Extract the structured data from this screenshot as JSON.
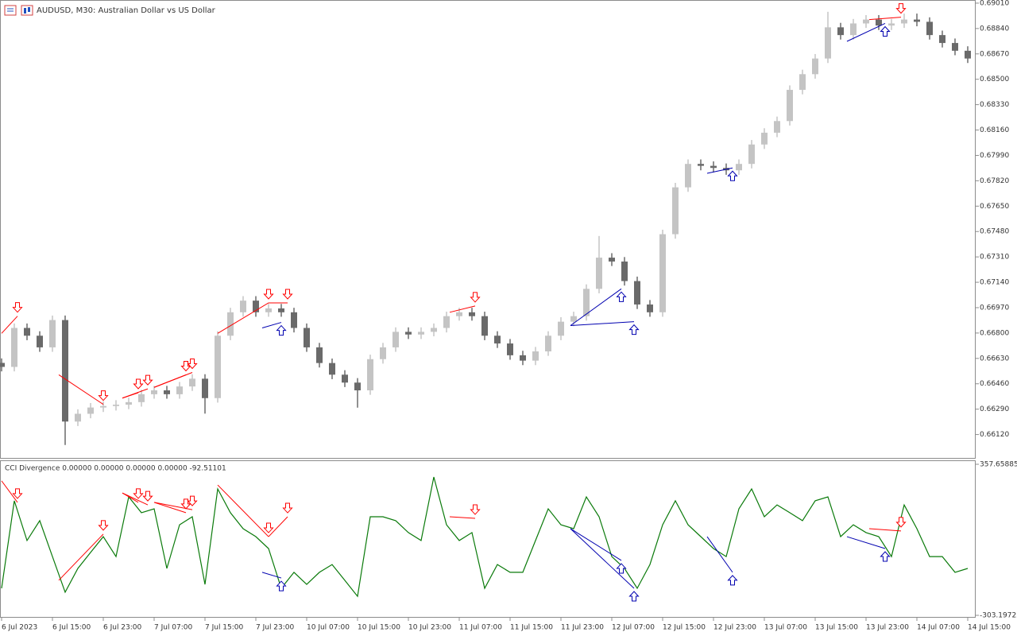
{
  "chart_data": [
    {
      "type": "candlestick",
      "title": "AUDUSD, M30:  Australian Dollar vs US Dollar",
      "up_color": "#c4c4c4",
      "down_color": "#6a6a6a",
      "x": [
        0,
        4,
        8,
        12,
        16,
        20,
        24,
        28,
        32,
        36,
        40,
        44,
        48,
        52,
        56,
        60,
        64,
        68,
        72,
        76,
        80,
        84,
        88,
        92,
        96,
        100,
        104,
        108,
        112,
        116,
        120,
        124,
        128,
        132,
        136,
        140,
        144,
        148,
        152,
        156,
        160,
        164,
        168,
        172,
        176,
        180,
        184,
        188,
        192,
        196,
        200,
        204,
        208,
        212,
        216,
        220,
        224,
        228,
        232,
        236,
        240,
        244,
        248,
        252,
        256,
        260,
        264,
        268,
        272,
        276,
        280,
        284,
        288,
        292,
        296,
        300,
        304
      ],
      "open": [
        0.666,
        0.66573,
        0.66834,
        0.66782,
        0.66704,
        0.66887,
        0.66207,
        0.66259,
        0.66301,
        0.66311,
        0.6632,
        0.66337,
        0.6639,
        0.66416,
        0.6639,
        0.66442,
        0.66494,
        0.66364,
        0.66782,
        0.66939,
        0.67017,
        0.66939,
        0.66965,
        0.66939,
        0.66834,
        0.66704,
        0.66599,
        0.66521,
        0.66468,
        0.66416,
        0.66625,
        0.66704,
        0.66808,
        0.6679,
        0.66808,
        0.66834,
        0.66913,
        0.66939,
        0.66913,
        0.66782,
        0.6673,
        0.66651,
        0.66615,
        0.66677,
        0.66782,
        0.66876,
        0.66913,
        0.67096,
        0.67305,
        0.67279,
        0.67148,
        0.66991,
        0.66939,
        0.67462,
        0.67776,
        0.67933,
        0.6792,
        0.67906,
        0.6789,
        0.67933,
        0.68063,
        0.68142,
        0.6822,
        0.68429,
        0.68534,
        0.68639,
        0.68848,
        0.68796,
        0.68874,
        0.689,
        0.6886,
        0.68874,
        0.689,
        0.68885,
        0.68796,
        0.68743,
        0.68691
      ],
      "high": [
        0.6663,
        0.66864,
        0.66864,
        0.66812,
        0.66917,
        0.66917,
        0.66289,
        0.66331,
        0.66341,
        0.6635,
        0.66367,
        0.6642,
        0.66446,
        0.66446,
        0.66472,
        0.66524,
        0.66524,
        0.66812,
        0.66969,
        0.67047,
        0.67047,
        0.66995,
        0.66995,
        0.66969,
        0.66864,
        0.66734,
        0.66629,
        0.66551,
        0.66498,
        0.66655,
        0.66734,
        0.66838,
        0.66838,
        0.66838,
        0.66864,
        0.66943,
        0.66969,
        0.66969,
        0.66943,
        0.66812,
        0.6676,
        0.66681,
        0.66707,
        0.66812,
        0.66906,
        0.66943,
        0.67126,
        0.6745,
        0.67335,
        0.67309,
        0.67178,
        0.67021,
        0.67492,
        0.67806,
        0.67963,
        0.67963,
        0.6795,
        0.67936,
        0.67963,
        0.68093,
        0.68172,
        0.6825,
        0.68459,
        0.68564,
        0.68669,
        0.68952,
        0.68878,
        0.68904,
        0.6893,
        0.6893,
        0.68904,
        0.6894,
        0.6894,
        0.68915,
        0.68826,
        0.68773,
        0.68721
      ],
      "low": [
        0.66543,
        0.66543,
        0.66752,
        0.66674,
        0.66674,
        0.6605,
        0.66177,
        0.66229,
        0.66271,
        0.66281,
        0.6629,
        0.66307,
        0.6636,
        0.6636,
        0.6636,
        0.66412,
        0.6626,
        0.66334,
        0.66752,
        0.66909,
        0.66909,
        0.66909,
        0.66909,
        0.66804,
        0.66674,
        0.66569,
        0.66491,
        0.66438,
        0.663,
        0.66386,
        0.66595,
        0.66674,
        0.6676,
        0.6676,
        0.66778,
        0.66804,
        0.66883,
        0.66883,
        0.66752,
        0.667,
        0.66621,
        0.66585,
        0.66585,
        0.66647,
        0.66752,
        0.66846,
        0.66883,
        0.67066,
        0.67249,
        0.67118,
        0.66961,
        0.66909,
        0.66909,
        0.67432,
        0.67746,
        0.6789,
        0.67876,
        0.6786,
        0.6786,
        0.67903,
        0.68033,
        0.68112,
        0.6819,
        0.68399,
        0.68504,
        0.68609,
        0.68766,
        0.68766,
        0.68844,
        0.6883,
        0.6883,
        0.68844,
        0.68855,
        0.68766,
        0.68713,
        0.68661,
        0.68609
      ],
      "close": [
        0.66573,
        0.66834,
        0.66782,
        0.66704,
        0.66887,
        0.66207,
        0.66259,
        0.66301,
        0.66311,
        0.6632,
        0.66337,
        0.6639,
        0.66416,
        0.6639,
        0.66442,
        0.66494,
        0.66364,
        0.66782,
        0.66939,
        0.67017,
        0.66939,
        0.66965,
        0.66939,
        0.66834,
        0.66704,
        0.66599,
        0.66521,
        0.66468,
        0.66416,
        0.66625,
        0.66704,
        0.66808,
        0.6679,
        0.66808,
        0.66834,
        0.66913,
        0.66939,
        0.66913,
        0.66782,
        0.6673,
        0.66651,
        0.66615,
        0.66677,
        0.66782,
        0.66876,
        0.66913,
        0.67096,
        0.67305,
        0.67279,
        0.67148,
        0.66991,
        0.66939,
        0.67462,
        0.67776,
        0.67933,
        0.6792,
        0.67906,
        0.6789,
        0.67933,
        0.68063,
        0.68142,
        0.6822,
        0.68429,
        0.68534,
        0.68639,
        0.68848,
        0.68796,
        0.68874,
        0.689,
        0.6886,
        0.68874,
        0.689,
        0.68885,
        0.68796,
        0.68743,
        0.68691,
        0.68639
      ],
      "xlim": [
        0,
        306.5
      ],
      "ylim": [
        0.65958,
        0.69031
      ],
      "yticks": [
        {
          "value": 0.6901,
          "label": "0.69010"
        },
        {
          "value": 0.6884,
          "label": "0.68840"
        },
        {
          "value": 0.6867,
          "label": "0.68670"
        },
        {
          "value": 0.685,
          "label": "0.68500"
        },
        {
          "value": 0.6833,
          "label": "0.68330"
        },
        {
          "value": 0.6816,
          "label": "0.68160"
        },
        {
          "value": 0.6799,
          "label": "0.67990"
        },
        {
          "value": 0.6782,
          "label": "0.67820"
        },
        {
          "value": 0.6765,
          "label": "0.67650"
        },
        {
          "value": 0.6748,
          "label": "0.67480"
        },
        {
          "value": 0.6731,
          "label": "0.67310"
        },
        {
          "value": 0.6714,
          "label": "0.67140"
        },
        {
          "value": 0.6697,
          "label": "0.66970"
        },
        {
          "value": 0.668,
          "label": "0.66800"
        },
        {
          "value": 0.6663,
          "label": "0.66630"
        },
        {
          "value": 0.6646,
          "label": "0.66460"
        },
        {
          "value": 0.6629,
          "label": "0.66290"
        },
        {
          "value": 0.6612,
          "label": "0.66120"
        }
      ],
      "divergences": [
        {
          "color": "#ff0000",
          "arrow": "down",
          "x": [
            0,
            5
          ],
          "values": [
            0.66798,
            0.66913
          ]
        },
        {
          "color": "#ff0000",
          "arrow": "down",
          "x": [
            18,
            32
          ],
          "values": [
            0.6652,
            0.66322
          ]
        },
        {
          "color": "#ff0000",
          "arrow": "down",
          "x": [
            38,
            43
          ],
          "values": [
            0.66364,
            0.664
          ]
        },
        {
          "color": "#ff0000",
          "arrow": "down",
          "x": [
            38,
            46
          ],
          "values": [
            0.66364,
            0.66426
          ]
        },
        {
          "color": "#ff0000",
          "arrow": "down",
          "x": [
            48,
            58
          ],
          "values": [
            0.66436,
            0.6652
          ]
        },
        {
          "color": "#ff0000",
          "arrow": "down",
          "x": [
            48,
            60
          ],
          "values": [
            0.66436,
            0.66536
          ]
        },
        {
          "color": "#ff0000",
          "arrow": "down",
          "x": [
            68,
            84
          ],
          "values": [
            0.66798,
            0.67002
          ]
        },
        {
          "color": "#ff0000",
          "arrow": "down",
          "x": [
            84,
            90
          ],
          "values": [
            0.67002,
            0.67002
          ]
        },
        {
          "color": "#ff0000",
          "arrow": "down",
          "x": [
            141,
            149
          ],
          "values": [
            0.66939,
            0.66981
          ]
        },
        {
          "color": "#ff0000",
          "arrow": "down",
          "x": [
            273,
            283
          ],
          "values": [
            0.689,
            0.68916
          ]
        },
        {
          "color": "#0000b0",
          "arrow": "up",
          "x": [
            82,
            88
          ],
          "values": [
            0.66834,
            0.66871
          ]
        },
        {
          "color": "#0000b0",
          "arrow": "up",
          "x": [
            179,
            195
          ],
          "values": [
            0.6685,
            0.67096
          ]
        },
        {
          "color": "#0000b0",
          "arrow": "up",
          "x": [
            179,
            199
          ],
          "values": [
            0.6685,
            0.66876
          ]
        },
        {
          "color": "#0000b0",
          "arrow": "up",
          "x": [
            222,
            230
          ],
          "values": [
            0.6787,
            0.67906
          ]
        },
        {
          "color": "#0000b0",
          "arrow": "up",
          "x": [
            266,
            278
          ],
          "values": [
            0.68754,
            0.68874
          ]
        }
      ]
    },
    {
      "type": "line",
      "title": "CCI Divergence 0.00000 0.00000 0.00000 0.00000 -92.51101",
      "color": "#0a7a0a",
      "x": [
        0,
        4,
        8,
        12,
        16,
        20,
        24,
        28,
        32,
        36,
        40,
        44,
        48,
        52,
        56,
        60,
        64,
        68,
        72,
        76,
        80,
        84,
        88,
        92,
        96,
        100,
        104,
        108,
        112,
        116,
        120,
        124,
        128,
        132,
        136,
        140,
        144,
        148,
        152,
        156,
        160,
        164,
        168,
        172,
        176,
        180,
        184,
        188,
        192,
        196,
        200,
        204,
        208,
        212,
        216,
        220,
        224,
        228,
        232,
        236,
        240,
        244,
        248,
        252,
        256,
        260,
        264,
        268,
        272,
        276,
        280,
        284,
        288,
        292,
        296,
        300,
        304
      ],
      "values": [
        -185,
        198,
        24,
        111,
        -46,
        -202,
        -98,
        -28,
        41,
        -46,
        215,
        146,
        163,
        -98,
        93,
        128,
        -168,
        250,
        146,
        76,
        41,
        -11,
        -185,
        -115,
        -168,
        -115,
        -81,
        -150,
        -220,
        128,
        128,
        111,
        59,
        24,
        302,
        93,
        24,
        59,
        -185,
        -81,
        -115,
        -115,
        24,
        163,
        93,
        76,
        215,
        128,
        -46,
        -98,
        -185,
        -81,
        93,
        198,
        93,
        41,
        -11,
        -46,
        163,
        250,
        128,
        180,
        146,
        111,
        198,
        215,
        41,
        93,
        59,
        41,
        -46,
        180,
        76,
        -46,
        -46,
        -115,
        -98
      ],
      "xlim": [
        0,
        306.5
      ],
      "ylim": [
        -313.63,
        371.57
      ],
      "yticks": [
        357.65885,
        -303.19722
      ],
      "xticks": [
        {
          "value": 0,
          "label": "6 Jul 2023"
        },
        {
          "value": 16,
          "label": "6 Jul 15:00"
        },
        {
          "value": 32,
          "label": "6 Jul 23:00"
        },
        {
          "value": 48,
          "label": "7 Jul 07:00"
        },
        {
          "value": 64,
          "label": "7 Jul 15:00"
        },
        {
          "value": 80,
          "label": "7 Jul 23:00"
        },
        {
          "value": 96,
          "label": "10 Jul 07:00"
        },
        {
          "value": 112,
          "label": "10 Jul 15:00"
        },
        {
          "value": 128,
          "label": "10 Jul 23:00"
        },
        {
          "value": 144,
          "label": "11 Jul 07:00"
        },
        {
          "value": 160,
          "label": "11 Jul 15:00"
        },
        {
          "value": 176,
          "label": "11 Jul 23:00"
        },
        {
          "value": 192,
          "label": "12 Jul 07:00"
        },
        {
          "value": 208,
          "label": "12 Jul 15:00"
        },
        {
          "value": 224,
          "label": "12 Jul 23:00"
        },
        {
          "value": 240,
          "label": "13 Jul 07:00"
        },
        {
          "value": 256,
          "label": "13 Jul 15:00"
        },
        {
          "value": 272,
          "label": "13 Jul 23:00"
        },
        {
          "value": 288,
          "label": "14 Jul 07:00"
        },
        {
          "value": 304,
          "label": "14 Jul 15:00"
        }
      ],
      "divergences": [
        {
          "color": "#ff0000",
          "arrow": "down",
          "x": [
            0,
            5
          ],
          "values": [
            285,
            191
          ]
        },
        {
          "color": "#ff0000",
          "arrow": "down",
          "x": [
            18,
            32
          ],
          "values": [
            -150,
            52
          ]
        },
        {
          "color": "#ff0000",
          "arrow": "down",
          "x": [
            38,
            43
          ],
          "values": [
            232,
            191
          ]
        },
        {
          "color": "#ff0000",
          "arrow": "down",
          "x": [
            38,
            46
          ],
          "values": [
            232,
            180
          ]
        },
        {
          "color": "#ff0000",
          "arrow": "down",
          "x": [
            48,
            58
          ],
          "values": [
            191,
            146
          ]
        },
        {
          "color": "#ff0000",
          "arrow": "down",
          "x": [
            48,
            60
          ],
          "values": [
            191,
            159
          ]
        },
        {
          "color": "#ff0000",
          "arrow": "down",
          "x": [
            68,
            84
          ],
          "values": [
            267,
            41
          ]
        },
        {
          "color": "#ff0000",
          "arrow": "down",
          "x": [
            84,
            90
          ],
          "values": [
            41,
            128
          ]
        },
        {
          "color": "#ff0000",
          "arrow": "down",
          "x": [
            141,
            149
          ],
          "values": [
            128,
            121
          ]
        },
        {
          "color": "#ff0000",
          "arrow": "down",
          "x": [
            273,
            283
          ],
          "values": [
            76,
            66
          ]
        },
        {
          "color": "#0000b0",
          "arrow": "up",
          "x": [
            82,
            88
          ],
          "values": [
            -115,
            -140
          ]
        },
        {
          "color": "#0000b0",
          "arrow": "up",
          "x": [
            179,
            195
          ],
          "values": [
            76,
            -63
          ]
        },
        {
          "color": "#0000b0",
          "arrow": "up",
          "x": [
            179,
            199
          ],
          "values": [
            76,
            -185
          ]
        },
        {
          "color": "#0000b0",
          "arrow": "up",
          "x": [
            222,
            230
          ],
          "values": [
            41,
            -115
          ]
        },
        {
          "color": "#0000b0",
          "arrow": "up",
          "x": [
            266,
            278
          ],
          "values": [
            41,
            -11
          ]
        }
      ]
    }
  ]
}
